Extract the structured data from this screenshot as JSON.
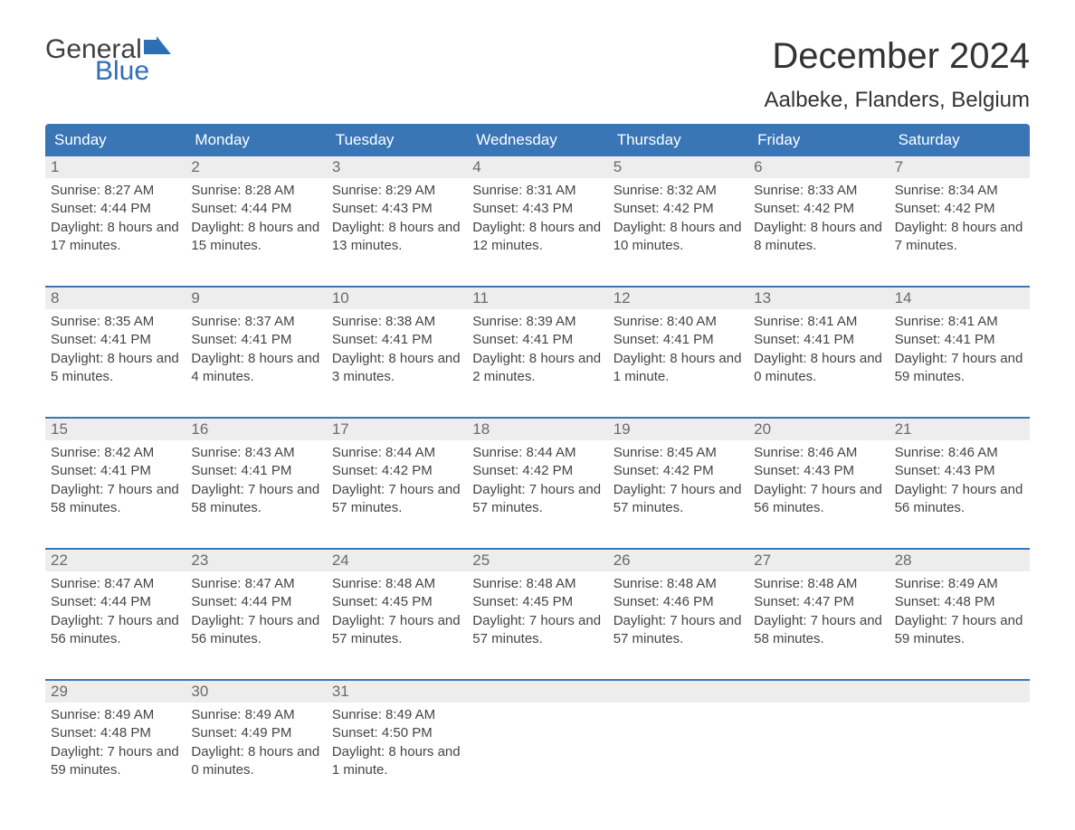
{
  "logo": {
    "text_general": "General",
    "text_blue": "Blue",
    "flag_color": "#2f6eb5"
  },
  "title": "December 2024",
  "location": "Aalbeke, Flanders, Belgium",
  "colors": {
    "header_bg": "#3a76b6",
    "header_text": "#ffffff",
    "daynum_bg": "#ededed",
    "daynum_text": "#6a6a6a",
    "body_text": "#444444",
    "separator": "#3a76b6"
  },
  "day_headers": [
    "Sunday",
    "Monday",
    "Tuesday",
    "Wednesday",
    "Thursday",
    "Friday",
    "Saturday"
  ],
  "weeks": [
    [
      {
        "n": "1",
        "sunrise": "8:27 AM",
        "sunset": "4:44 PM",
        "daylight": "8 hours and 17 minutes."
      },
      {
        "n": "2",
        "sunrise": "8:28 AM",
        "sunset": "4:44 PM",
        "daylight": "8 hours and 15 minutes."
      },
      {
        "n": "3",
        "sunrise": "8:29 AM",
        "sunset": "4:43 PM",
        "daylight": "8 hours and 13 minutes."
      },
      {
        "n": "4",
        "sunrise": "8:31 AM",
        "sunset": "4:43 PM",
        "daylight": "8 hours and 12 minutes."
      },
      {
        "n": "5",
        "sunrise": "8:32 AM",
        "sunset": "4:42 PM",
        "daylight": "8 hours and 10 minutes."
      },
      {
        "n": "6",
        "sunrise": "8:33 AM",
        "sunset": "4:42 PM",
        "daylight": "8 hours and 8 minutes."
      },
      {
        "n": "7",
        "sunrise": "8:34 AM",
        "sunset": "4:42 PM",
        "daylight": "8 hours and 7 minutes."
      }
    ],
    [
      {
        "n": "8",
        "sunrise": "8:35 AM",
        "sunset": "4:41 PM",
        "daylight": "8 hours and 5 minutes."
      },
      {
        "n": "9",
        "sunrise": "8:37 AM",
        "sunset": "4:41 PM",
        "daylight": "8 hours and 4 minutes."
      },
      {
        "n": "10",
        "sunrise": "8:38 AM",
        "sunset": "4:41 PM",
        "daylight": "8 hours and 3 minutes."
      },
      {
        "n": "11",
        "sunrise": "8:39 AM",
        "sunset": "4:41 PM",
        "daylight": "8 hours and 2 minutes."
      },
      {
        "n": "12",
        "sunrise": "8:40 AM",
        "sunset": "4:41 PM",
        "daylight": "8 hours and 1 minute."
      },
      {
        "n": "13",
        "sunrise": "8:41 AM",
        "sunset": "4:41 PM",
        "daylight": "8 hours and 0 minutes."
      },
      {
        "n": "14",
        "sunrise": "8:41 AM",
        "sunset": "4:41 PM",
        "daylight": "7 hours and 59 minutes."
      }
    ],
    [
      {
        "n": "15",
        "sunrise": "8:42 AM",
        "sunset": "4:41 PM",
        "daylight": "7 hours and 58 minutes."
      },
      {
        "n": "16",
        "sunrise": "8:43 AM",
        "sunset": "4:41 PM",
        "daylight": "7 hours and 58 minutes."
      },
      {
        "n": "17",
        "sunrise": "8:44 AM",
        "sunset": "4:42 PM",
        "daylight": "7 hours and 57 minutes."
      },
      {
        "n": "18",
        "sunrise": "8:44 AM",
        "sunset": "4:42 PM",
        "daylight": "7 hours and 57 minutes."
      },
      {
        "n": "19",
        "sunrise": "8:45 AM",
        "sunset": "4:42 PM",
        "daylight": "7 hours and 57 minutes."
      },
      {
        "n": "20",
        "sunrise": "8:46 AM",
        "sunset": "4:43 PM",
        "daylight": "7 hours and 56 minutes."
      },
      {
        "n": "21",
        "sunrise": "8:46 AM",
        "sunset": "4:43 PM",
        "daylight": "7 hours and 56 minutes."
      }
    ],
    [
      {
        "n": "22",
        "sunrise": "8:47 AM",
        "sunset": "4:44 PM",
        "daylight": "7 hours and 56 minutes."
      },
      {
        "n": "23",
        "sunrise": "8:47 AM",
        "sunset": "4:44 PM",
        "daylight": "7 hours and 56 minutes."
      },
      {
        "n": "24",
        "sunrise": "8:48 AM",
        "sunset": "4:45 PM",
        "daylight": "7 hours and 57 minutes."
      },
      {
        "n": "25",
        "sunrise": "8:48 AM",
        "sunset": "4:45 PM",
        "daylight": "7 hours and 57 minutes."
      },
      {
        "n": "26",
        "sunrise": "8:48 AM",
        "sunset": "4:46 PM",
        "daylight": "7 hours and 57 minutes."
      },
      {
        "n": "27",
        "sunrise": "8:48 AM",
        "sunset": "4:47 PM",
        "daylight": "7 hours and 58 minutes."
      },
      {
        "n": "28",
        "sunrise": "8:49 AM",
        "sunset": "4:48 PM",
        "daylight": "7 hours and 59 minutes."
      }
    ],
    [
      {
        "n": "29",
        "sunrise": "8:49 AM",
        "sunset": "4:48 PM",
        "daylight": "7 hours and 59 minutes."
      },
      {
        "n": "30",
        "sunrise": "8:49 AM",
        "sunset": "4:49 PM",
        "daylight": "8 hours and 0 minutes."
      },
      {
        "n": "31",
        "sunrise": "8:49 AM",
        "sunset": "4:50 PM",
        "daylight": "8 hours and 1 minute."
      },
      null,
      null,
      null,
      null
    ]
  ],
  "labels": {
    "sunrise": "Sunrise:",
    "sunset": "Sunset:",
    "daylight": "Daylight:"
  }
}
